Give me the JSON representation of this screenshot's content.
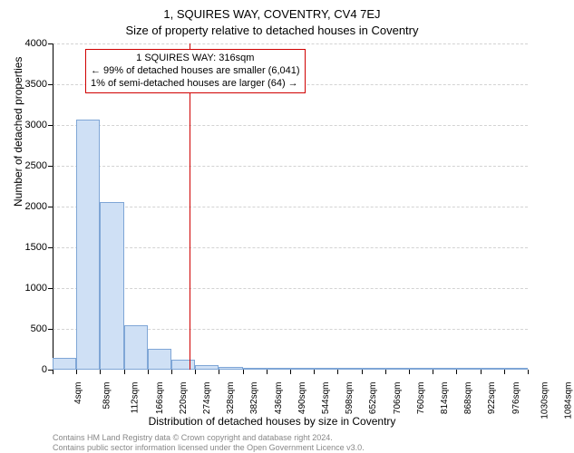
{
  "chart": {
    "type": "histogram",
    "title_main": "1, SQUIRES WAY, COVENTRY, CV4 7EJ",
    "title_sub": "Size of property relative to detached houses in Coventry",
    "ylabel": "Number of detached properties",
    "xlabel": "Distribution of detached houses by size in Coventry",
    "background_color": "#ffffff",
    "bar_fill": "#cfe0f5",
    "bar_border": "#7fa6d6",
    "grid_color": "#cccccc",
    "axis_color": "#000000",
    "refline_color": "#d00000",
    "refline_x": 316,
    "ylim": [
      0,
      4005
    ],
    "ytick_step": 500,
    "yticks": [
      0,
      500,
      1000,
      1500,
      2000,
      2500,
      3000,
      3500,
      4000
    ],
    "bar_width_units": 54,
    "x_start": 4,
    "x_end": 1084,
    "xtick_categories": [
      "4sqm",
      "58sqm",
      "112sqm",
      "166sqm",
      "220sqm",
      "274sqm",
      "328sqm",
      "382sqm",
      "436sqm",
      "490sqm",
      "544sqm",
      "598sqm",
      "652sqm",
      "706sqm",
      "760sqm",
      "814sqm",
      "868sqm",
      "922sqm",
      "976sqm",
      "1030sqm",
      "1084sqm"
    ],
    "values": [
      150,
      3070,
      2060,
      540,
      260,
      120,
      60,
      35,
      25,
      22,
      18,
      12,
      9,
      7,
      5,
      4,
      3,
      2,
      2,
      1
    ],
    "annotation_lines": [
      "1 SQUIRES WAY: 316sqm",
      "← 99% of detached houses are smaller (6,041)",
      "1% of semi-detached houses are larger (64) →"
    ],
    "footer1": "Contains HM Land Registry data © Crown copyright and database right 2024.",
    "footer2": "Contains public sector information licensed under the Open Government Licence v3.0.",
    "title_fontsize": 13,
    "label_fontsize": 12,
    "tick_fontsize": 11,
    "xtick_fontsize": 10,
    "footer_fontsize": 9,
    "footer_color": "#888888"
  }
}
